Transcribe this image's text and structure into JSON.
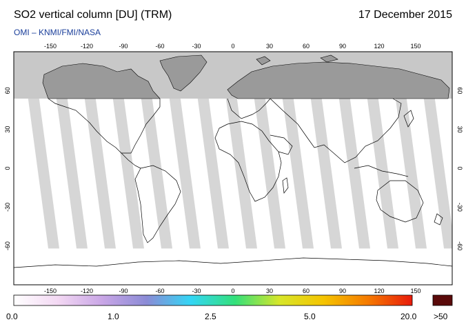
{
  "header": {
    "title": "SO2 vertical column [DU] (TRM)",
    "date": "17 December 2015",
    "credit": "OMI  –  KNMI/FMI/NASA"
  },
  "map": {
    "lon_ticks": [
      -150,
      -120,
      -90,
      -60,
      -30,
      0,
      30,
      60,
      90,
      120,
      150
    ],
    "lat_ticks": [
      60,
      30,
      0,
      -30,
      -60
    ],
    "no_data_region": "north of ~55N (polar night)",
    "colors": {
      "no_data": "#c8c8c8",
      "swath_gap": "#d6d6d6",
      "land_gap": "#a8a8a8",
      "background": "#ffffff"
    }
  },
  "colorbar": {
    "labels": [
      "0.0",
      "1.0",
      "2.5",
      "5.0",
      "20.0",
      ">50"
    ],
    "overflow_color": "#5a0a0a",
    "stops": [
      "#ffffff",
      "#f3d8f3",
      "#c9a6e6",
      "#8b8bd6",
      "#33d6f5",
      "#33e07a",
      "#d7e62a",
      "#f5c400",
      "#f57a00",
      "#e81b0b"
    ]
  }
}
